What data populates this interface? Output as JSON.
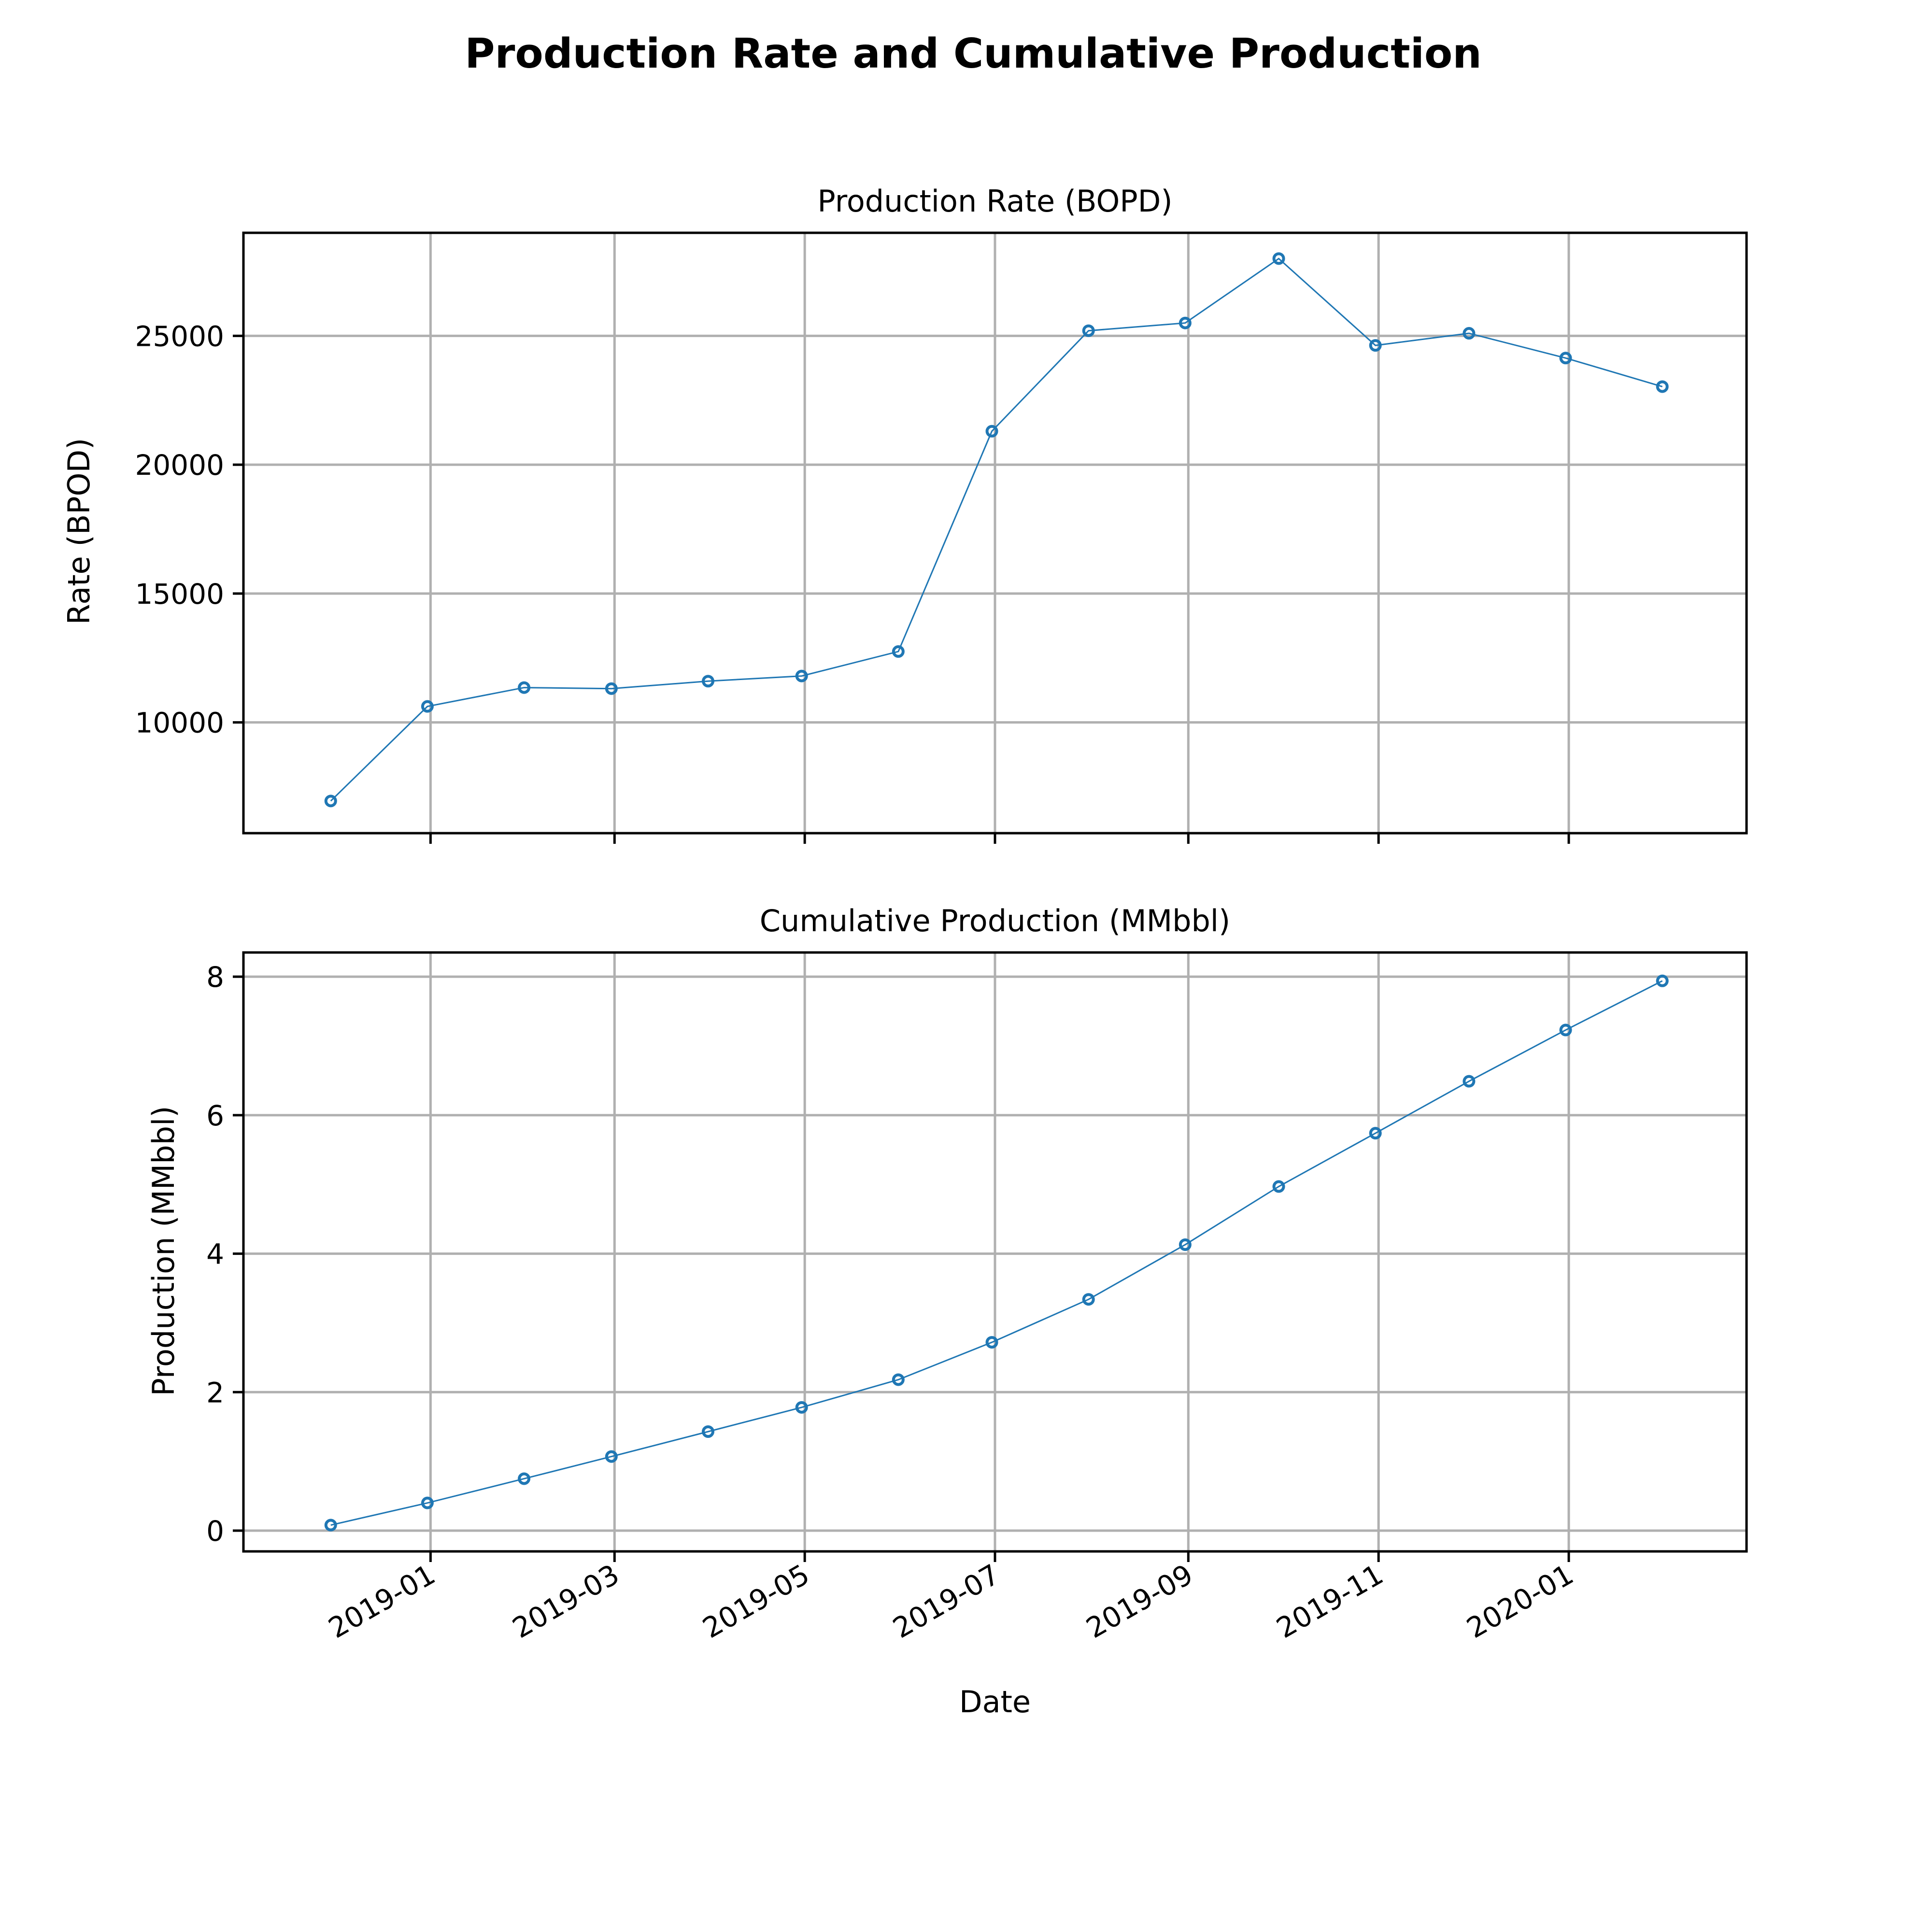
{
  "chart_data": {
    "title": "Production Rate and Cumulative Production",
    "colors": {
      "series": "#1f77b4"
    },
    "dates": [
      "2018-11-30",
      "2018-12-31",
      "2019-01-31",
      "2019-02-28",
      "2019-03-31",
      "2019-04-30",
      "2019-05-31",
      "2019-06-30",
      "2019-07-31",
      "2019-08-31",
      "2019-09-30",
      "2019-10-31",
      "2019-11-30",
      "2019-12-31",
      "2020-01-31"
    ],
    "x_ticks": [
      "2019-01",
      "2019-03",
      "2019-05",
      "2019-07",
      "2019-09",
      "2019-11",
      "2020-01"
    ],
    "x_tick_dates": [
      "2019-01-01",
      "2019-03-01",
      "2019-05-01",
      "2019-07-01",
      "2019-09-01",
      "2019-11-01",
      "2020-01-01"
    ],
    "xlabel": "Date",
    "xlim": [
      "2018-11-02",
      "2020-02-27"
    ],
    "panels": [
      {
        "type": "line",
        "title": "Production Rate (BOPD)",
        "ylabel": "Rate (BPOD)",
        "ylim": [
          5700,
          29000
        ],
        "y_ticks": [
          10000,
          15000,
          20000,
          25000
        ],
        "y_tick_labels": [
          "10000",
          "15000",
          "20000",
          "25000"
        ],
        "grid": true,
        "values": [
          6950,
          10620,
          11350,
          11310,
          11600,
          11800,
          12750,
          21300,
          25200,
          25500,
          28000,
          24630,
          25100,
          24140,
          23030
        ]
      },
      {
        "type": "line",
        "title": "Cumulative Production (MMbbl)",
        "ylabel": "Production (MMbbl)",
        "ylim": [
          -0.3,
          8.35
        ],
        "y_ticks": [
          0,
          2,
          4,
          6,
          8
        ],
        "y_tick_labels": [
          "0",
          "2",
          "4",
          "6",
          "8"
        ],
        "grid": true,
        "values": [
          0.08,
          0.4,
          0.75,
          1.07,
          1.43,
          1.78,
          2.18,
          2.72,
          3.34,
          4.13,
          4.97,
          5.74,
          6.49,
          7.23,
          7.94
        ]
      }
    ]
  }
}
